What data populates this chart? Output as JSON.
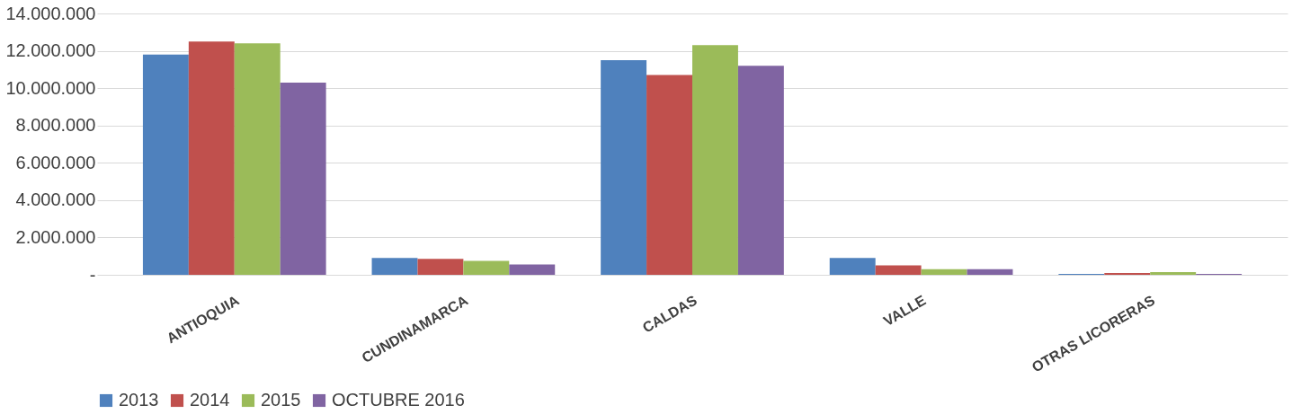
{
  "chart_data": {
    "type": "bar",
    "categories": [
      "ANTIOQUIA",
      "CUNDINAMARCA",
      "CALDAS",
      "VALLE",
      "OTRAS LICORERAS"
    ],
    "series": [
      {
        "name": "2013",
        "color": "#4f81bd",
        "values": [
          11800000,
          900000,
          11500000,
          900000,
          50000
        ]
      },
      {
        "name": "2014",
        "color": "#c0504d",
        "values": [
          12500000,
          850000,
          10700000,
          500000,
          100000
        ]
      },
      {
        "name": "2015",
        "color": "#9bbb59",
        "values": [
          12400000,
          750000,
          12300000,
          300000,
          150000
        ]
      },
      {
        "name": "OCTUBRE 2016",
        "color": "#8064a2",
        "values": [
          10300000,
          550000,
          11200000,
          300000,
          50000
        ]
      }
    ],
    "ylim": [
      0,
      14000000
    ],
    "yticks": [
      {
        "value": 0,
        "label": "-"
      },
      {
        "value": 2000000,
        "label": "2.000.000"
      },
      {
        "value": 4000000,
        "label": "4.000.000"
      },
      {
        "value": 6000000,
        "label": "6.000.000"
      },
      {
        "value": 8000000,
        "label": "8.000.000"
      },
      {
        "value": 10000000,
        "label": "10.000.000"
      },
      {
        "value": 12000000,
        "label": "12.000.000"
      },
      {
        "value": 14000000,
        "label": "14.000.000"
      }
    ],
    "grid": "y",
    "legend": "bottom"
  }
}
